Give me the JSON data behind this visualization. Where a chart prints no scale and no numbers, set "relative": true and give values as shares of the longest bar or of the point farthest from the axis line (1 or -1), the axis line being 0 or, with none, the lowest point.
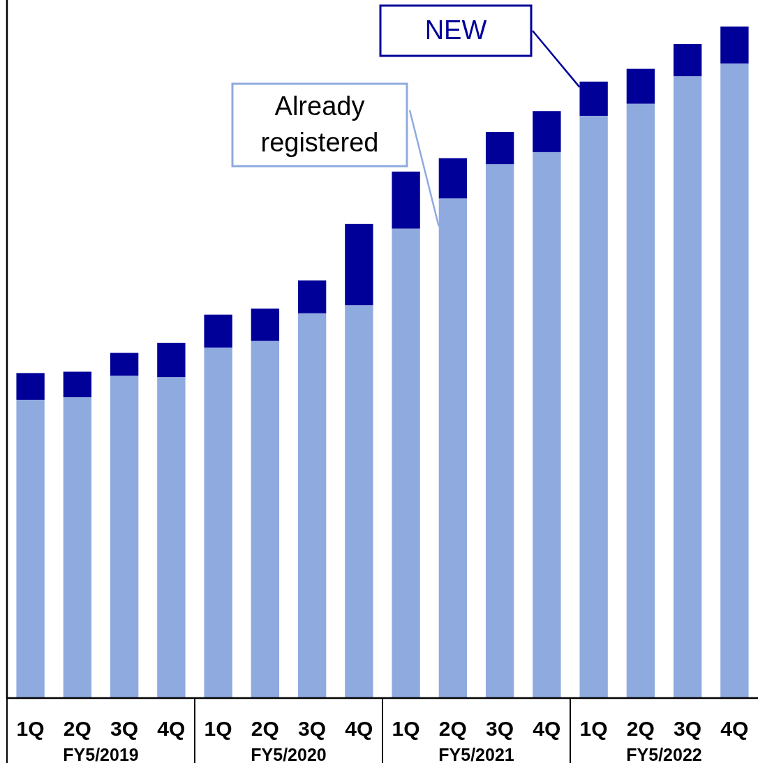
{
  "chart_data": {
    "type": "bar",
    "stacked": true,
    "relative": true,
    "categories": [
      "1Q",
      "2Q",
      "3Q",
      "4Q",
      "1Q",
      "2Q",
      "3Q",
      "4Q",
      "1Q",
      "2Q",
      "3Q",
      "4Q",
      "1Q",
      "2Q",
      "3Q",
      "4Q"
    ],
    "series": [
      {
        "name": "Already registered",
        "color": "#8faadf",
        "values": [
          0.444,
          0.448,
          0.48,
          0.478,
          0.522,
          0.532,
          0.573,
          0.585,
          0.699,
          0.744,
          0.795,
          0.813,
          0.867,
          0.885,
          0.926,
          0.945
        ]
      },
      {
        "name": "NEW",
        "color": "#000099",
        "values": [
          0.04,
          0.038,
          0.034,
          0.051,
          0.049,
          0.048,
          0.049,
          0.121,
          0.085,
          0.06,
          0.048,
          0.061,
          0.051,
          0.052,
          0.048,
          0.055
        ]
      }
    ],
    "annotations": [
      "FY5/2019",
      "FY5/2020",
      "FY5/2021",
      "FY5/2022"
    ]
  }
}
